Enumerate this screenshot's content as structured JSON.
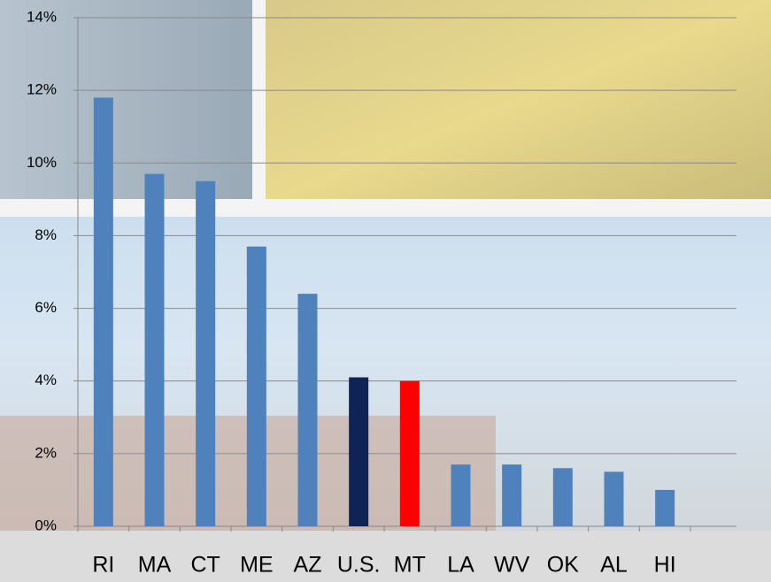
{
  "chart_data": {
    "type": "bar",
    "categories": [
      "RI",
      "MA",
      "CT",
      "ME",
      "AZ",
      "U.S.",
      "MT",
      "LA",
      "WV",
      "OK",
      "AL",
      "HI"
    ],
    "values": [
      11.8,
      9.7,
      9.5,
      7.7,
      6.4,
      4.1,
      4.0,
      1.7,
      1.7,
      1.6,
      1.5,
      1.0
    ],
    "colors": [
      "#4f81bd",
      "#4f81bd",
      "#4f81bd",
      "#4f81bd",
      "#4f81bd",
      "#0f2356",
      "#ff0000",
      "#4f81bd",
      "#4f81bd",
      "#4f81bd",
      "#4f81bd",
      "#4f81bd"
    ],
    "ylim": [
      0,
      14
    ],
    "yticks": [
      {
        "value": 0,
        "label": "0%"
      },
      {
        "value": 2,
        "label": "2%"
      },
      {
        "value": 4,
        "label": "4%"
      },
      {
        "value": 6,
        "label": "6%"
      },
      {
        "value": 8,
        "label": "8%"
      },
      {
        "value": 10,
        "label": "10%"
      },
      {
        "value": 12,
        "label": "12%"
      },
      {
        "value": 14,
        "label": "14%"
      }
    ],
    "grid": true
  }
}
